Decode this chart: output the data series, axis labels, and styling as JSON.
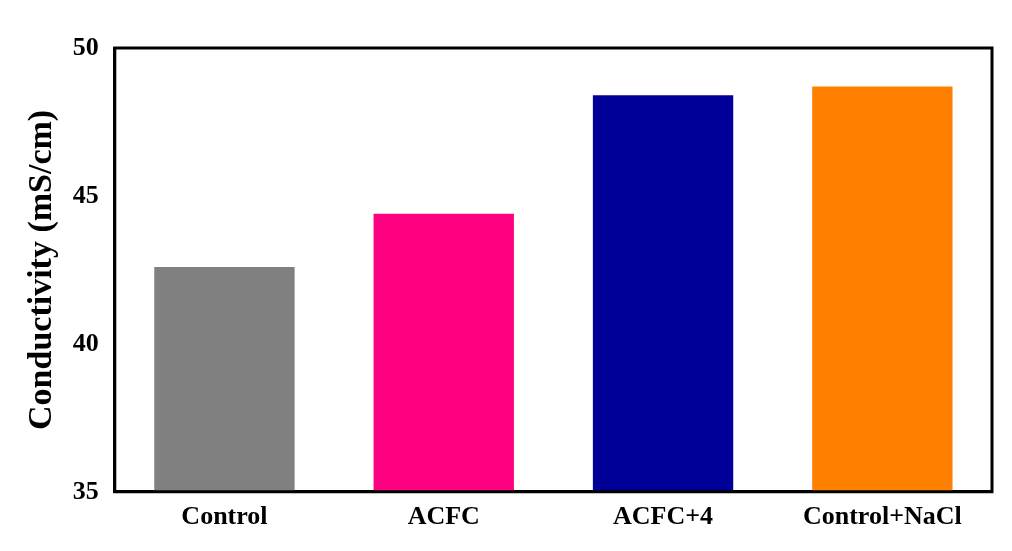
{
  "chart_data": {
    "type": "bar",
    "ylabel": "Conductivity (mS/cm)",
    "categories": [
      "Control",
      "ACFC",
      "ACFC+4",
      "Control+NaCl"
    ],
    "values": [
      42.6,
      44.4,
      48.4,
      48.7
    ],
    "colors": [
      "#808080",
      "#ff0080",
      "#000099",
      "#ff8000"
    ],
    "ylim": [
      35,
      50
    ],
    "yticks": [
      35,
      40,
      45,
      50
    ],
    "grid": false,
    "legend": false
  }
}
